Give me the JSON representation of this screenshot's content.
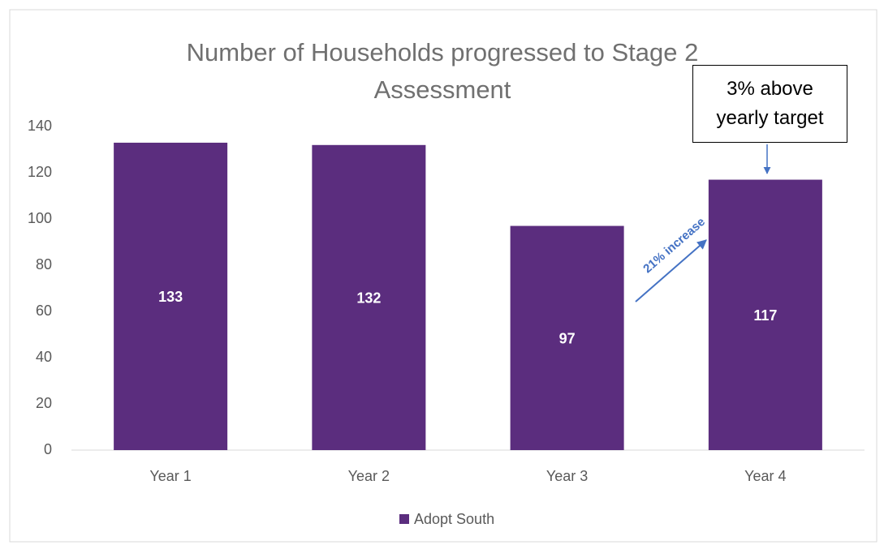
{
  "chart_data": {
    "type": "bar",
    "title": "Number of Households progressed to Stage 2 Assessment",
    "categories": [
      "Year 1",
      "Year 2",
      "Year 3",
      "Year 4"
    ],
    "series": [
      {
        "name": "Adopt South",
        "color": "#5b2d7e",
        "values": [
          133,
          132,
          97,
          117
        ]
      }
    ],
    "ylim": [
      0,
      140
    ],
    "yticks": [
      0,
      20,
      40,
      60,
      80,
      100,
      120,
      140
    ],
    "grid": false,
    "legend": "bottom",
    "annotations": [
      "3% above yearly target",
      "21% increase"
    ]
  }
}
